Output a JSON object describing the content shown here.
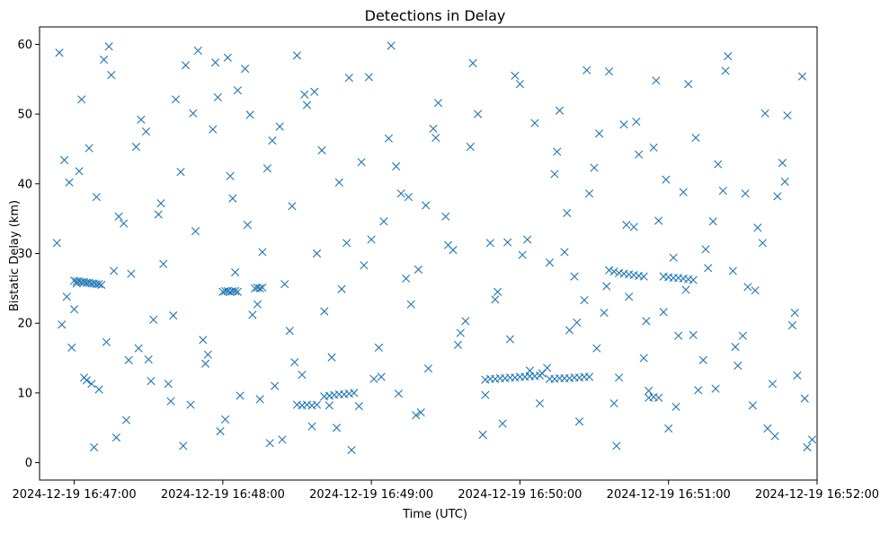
{
  "chart_data": {
    "type": "scatter",
    "title": "Detections in Delay",
    "xlabel": "Time (UTC)",
    "ylabel": "Bistatic Delay (km)",
    "x_axis_type": "datetime",
    "x_tick_labels": [
      "2024-12-19 16:47:00",
      "2024-12-19 16:48:00",
      "2024-12-19 16:49:00",
      "2024-12-19 16:50:00",
      "2024-12-19 16:51:00",
      "2024-12-19 16:52:00"
    ],
    "y_tick_labels": [
      "0",
      "10",
      "20",
      "30",
      "40",
      "50",
      "60"
    ],
    "y_ticks": [
      0,
      10,
      20,
      30,
      40,
      50,
      60
    ],
    "ylim": [
      -2.5,
      62.5
    ],
    "xlim": [
      "2024-12-19 16:46:46",
      "2024-12-19 16:52:00"
    ],
    "grid": false,
    "legend": "none",
    "marker": "x",
    "marker_color": "#1f77b4",
    "series": [
      {
        "x": [
          "2024-12-19 16:46:53",
          "2024-12-19 16:46:55",
          "2024-12-19 16:46:57",
          "2024-12-19 16:46:59",
          "2024-12-19 16:47:00",
          "2024-12-19 16:47:02",
          "2024-12-19 16:47:04",
          "2024-12-19 16:47:06",
          "2024-12-19 16:47:08",
          "2024-12-19 16:47:10",
          "2024-12-19 16:47:13",
          "2024-12-19 16:47:15",
          "2024-12-19 16:47:17",
          "2024-12-19 16:47:20",
          "2024-12-19 16:47:23",
          "2024-12-19 16:47:26",
          "2024-12-19 16:47:29",
          "2024-12-19 16:47:32",
          "2024-12-19 16:47:35",
          "2024-12-19 16:47:38",
          "2024-12-19 16:47:41",
          "2024-12-19 16:47:44",
          "2024-12-19 16:47:47",
          "2024-12-19 16:47:50",
          "2024-12-19 16:47:53",
          "2024-12-19 16:47:56",
          "2024-12-19 16:47:59",
          "2024-12-19 16:48:02",
          "2024-12-19 16:48:04",
          "2024-12-19 16:48:06",
          "2024-12-19 16:48:09",
          "2024-12-19 16:48:12",
          "2024-12-19 16:48:15",
          "2024-12-19 16:48:18",
          "2024-12-19 16:48:21",
          "2024-12-19 16:48:24",
          "2024-12-19 16:48:27",
          "2024-12-19 16:48:30",
          "2024-12-19 16:48:33",
          "2024-12-19 16:48:36",
          "2024-12-19 16:48:40",
          "2024-12-19 16:48:44",
          "2024-12-19 16:48:48",
          "2024-12-19 16:48:52",
          "2024-12-19 16:48:56",
          "2024-12-19 16:49:00",
          "2024-12-19 16:49:04",
          "2024-12-19 16:49:08",
          "2024-12-19 16:49:12",
          "2024-12-19 16:49:16",
          "2024-12-19 16:49:20",
          "2024-12-19 16:49:25",
          "2024-12-19 16:49:30",
          "2024-12-19 16:49:35",
          "2024-12-19 16:49:40",
          "2024-12-19 16:49:45",
          "2024-12-19 16:49:50",
          "2024-12-19 16:49:55",
          "2024-12-19 16:50:00",
          "2024-12-19 16:50:04",
          "2024-12-19 16:50:08",
          "2024-12-19 16:50:12",
          "2024-12-19 16:50:16",
          "2024-12-19 16:50:20",
          "2024-12-19 16:50:24",
          "2024-12-19 16:50:28",
          "2024-12-19 16:50:32",
          "2024-12-19 16:50:36",
          "2024-12-19 16:50:40",
          "2024-12-19 16:50:44",
          "2024-12-19 16:50:48",
          "2024-12-19 16:50:52",
          "2024-12-19 16:50:56",
          "2024-12-19 16:51:00",
          "2024-12-19 16:51:04",
          "2024-12-19 16:51:08",
          "2024-12-19 16:51:12",
          "2024-12-19 16:51:16",
          "2024-12-19 16:51:20",
          "2024-12-19 16:51:24",
          "2024-12-19 16:51:28",
          "2024-12-19 16:51:32",
          "2024-12-19 16:51:36",
          "2024-12-19 16:51:40",
          "2024-12-19 16:51:44",
          "2024-12-19 16:51:48",
          "2024-12-19 16:51:52",
          "2024-12-19 16:51:56",
          "2024-12-19 16:46:54",
          "2024-12-19 16:46:58",
          "2024-12-19 16:47:03",
          "2024-12-19 16:47:07",
          "2024-12-19 16:47:12",
          "2024-12-19 16:47:16",
          "2024-12-19 16:47:21",
          "2024-12-19 16:47:25",
          "2024-12-19 16:47:30",
          "2024-12-19 16:47:34",
          "2024-12-19 16:47:39",
          "2024-12-19 16:47:43",
          "2024-12-19 16:47:48",
          "2024-12-19 16:47:52",
          "2024-12-19 16:47:57",
          "2024-12-19 16:48:01",
          "2024-12-19 16:48:05",
          "2024-12-19 16:48:10",
          "2024-12-19 16:48:14",
          "2024-12-19 16:48:19",
          "2024-12-19 16:48:23",
          "2024-12-19 16:48:28",
          "2024-12-19 16:48:32",
          "2024-12-19 16:48:37",
          "2024-12-19 16:48:41",
          "2024-12-19 16:48:46",
          "2024-12-19 16:48:50",
          "2024-12-19 16:48:55",
          "2024-12-19 16:48:59",
          "2024-12-19 16:49:03",
          "2024-12-19 16:49:07",
          "2024-12-19 16:49:11",
          "2024-12-19 16:49:15",
          "2024-12-19 16:49:19",
          "2024-12-19 16:49:23",
          "2024-12-19 16:49:27",
          "2024-12-19 16:49:31",
          "2024-12-19 16:49:36",
          "2024-12-19 16:49:41",
          "2024-12-19 16:49:46",
          "2024-12-19 16:49:51",
          "2024-12-19 16:49:56",
          "2024-12-19 16:50:01",
          "2024-12-19 16:50:06",
          "2024-12-19 16:50:11",
          "2024-12-19 16:50:15",
          "2024-12-19 16:50:19",
          "2024-12-19 16:50:23",
          "2024-12-19 16:50:27",
          "2024-12-19 16:50:31",
          "2024-12-19 16:50:35",
          "2024-12-19 16:50:39",
          "2024-12-19 16:50:43",
          "2024-12-19 16:50:47",
          "2024-12-19 16:50:51",
          "2024-12-19 16:50:55",
          "2024-12-19 16:50:59",
          "2024-12-19 16:51:03",
          "2024-12-19 16:51:07",
          "2024-12-19 16:51:11",
          "2024-12-19 16:51:15",
          "2024-12-19 16:51:19",
          "2024-12-19 16:51:23",
          "2024-12-19 16:51:27",
          "2024-12-19 16:51:31",
          "2024-12-19 16:51:35",
          "2024-12-19 16:51:39",
          "2024-12-19 16:51:43",
          "2024-12-19 16:51:47",
          "2024-12-19 16:51:51",
          "2024-12-19 16:51:55",
          "2024-12-19 16:46:56",
          "2024-12-19 16:47:01",
          "2024-12-19 16:47:05",
          "2024-12-19 16:47:09",
          "2024-12-19 16:47:14",
          "2024-12-19 16:47:18",
          "2024-12-19 16:47:22",
          "2024-12-19 16:47:27",
          "2024-12-19 16:47:31",
          "2024-12-19 16:47:36",
          "2024-12-19 16:47:40",
          "2024-12-19 16:47:45",
          "2024-12-19 16:47:49",
          "2024-12-19 16:47:54",
          "2024-12-19 16:47:58",
          "2024-12-19 16:48:03",
          "2024-12-19 16:48:07",
          "2024-12-19 16:48:11",
          "2024-12-19 16:48:16",
          "2024-12-19 16:48:20",
          "2024-12-19 16:48:25",
          "2024-12-19 16:48:29",
          "2024-12-19 16:48:34",
          "2024-12-19 16:48:38",
          "2024-12-19 16:48:43",
          "2024-12-19 16:48:47",
          "2024-12-19 16:48:51",
          "2024-12-19 16:48:57",
          "2024-12-19 16:49:01",
          "2024-12-19 16:49:05",
          "2024-12-19 16:49:10",
          "2024-12-19 16:49:14",
          "2024-12-19 16:49:18",
          "2024-12-19 16:49:22",
          "2024-12-19 16:49:26",
          "2024-12-19 16:49:33",
          "2024-12-19 16:49:38",
          "2024-12-19 16:49:43",
          "2024-12-19 16:49:48",
          "2024-12-19 16:49:53",
          "2024-12-19 16:49:58",
          "2024-12-19 16:50:03",
          "2024-12-19 16:50:09",
          "2024-12-19 16:50:14",
          "2024-12-19 16:50:18",
          "2024-12-19 16:50:22",
          "2024-12-19 16:50:26",
          "2024-12-19 16:50:30",
          "2024-12-19 16:50:34",
          "2024-12-19 16:50:38",
          "2024-12-19 16:50:42",
          "2024-12-19 16:50:46",
          "2024-12-19 16:50:50",
          "2024-12-19 16:50:54",
          "2024-12-19 16:50:58",
          "2024-12-19 16:51:02",
          "2024-12-19 16:51:06",
          "2024-12-19 16:51:10",
          "2024-12-19 16:51:14",
          "2024-12-19 16:51:18",
          "2024-12-19 16:51:22",
          "2024-12-19 16:51:26",
          "2024-12-19 16:51:30",
          "2024-12-19 16:51:34",
          "2024-12-19 16:51:38",
          "2024-12-19 16:51:42",
          "2024-12-19 16:51:46",
          "2024-12-19 16:51:50",
          "2024-12-19 16:51:54",
          "2024-12-19 16:51:58",
          "2024-12-19 16:47:00",
          "2024-12-19 16:47:01",
          "2024-12-19 16:47:02",
          "2024-12-19 16:47:03",
          "2024-12-19 16:47:04",
          "2024-12-19 16:47:05",
          "2024-12-19 16:47:06",
          "2024-12-19 16:47:07",
          "2024-12-19 16:47:08",
          "2024-12-19 16:47:09",
          "2024-12-19 16:47:10",
          "2024-12-19 16:47:11",
          "2024-12-19 16:48:00",
          "2024-12-19 16:48:01",
          "2024-12-19 16:48:02",
          "2024-12-19 16:48:03",
          "2024-12-19 16:48:04",
          "2024-12-19 16:48:05",
          "2024-12-19 16:48:06",
          "2024-12-19 16:48:13",
          "2024-12-19 16:48:14",
          "2024-12-19 16:48:15",
          "2024-12-19 16:48:16",
          "2024-12-19 16:48:41",
          "2024-12-19 16:48:43",
          "2024-12-19 16:48:45",
          "2024-12-19 16:48:47",
          "2024-12-19 16:48:49",
          "2024-12-19 16:48:51",
          "2024-12-19 16:48:53",
          "2024-12-19 16:49:46",
          "2024-12-19 16:49:48",
          "2024-12-19 16:49:50",
          "2024-12-19 16:49:52",
          "2024-12-19 16:49:54",
          "2024-12-19 16:49:56",
          "2024-12-19 16:49:58",
          "2024-12-19 16:50:00",
          "2024-12-19 16:50:02",
          "2024-12-19 16:50:04",
          "2024-12-19 16:50:06",
          "2024-12-19 16:50:08",
          "2024-12-19 16:50:12",
          "2024-12-19 16:50:14",
          "2024-12-19 16:50:16",
          "2024-12-19 16:50:18",
          "2024-12-19 16:50:20",
          "2024-12-19 16:50:22",
          "2024-12-19 16:50:24",
          "2024-12-19 16:50:26",
          "2024-12-19 16:50:28",
          "2024-12-19 16:50:36",
          "2024-12-19 16:50:38",
          "2024-12-19 16:50:40",
          "2024-12-19 16:50:42",
          "2024-12-19 16:50:44",
          "2024-12-19 16:50:46",
          "2024-12-19 16:50:48",
          "2024-12-19 16:50:50",
          "2024-12-19 16:50:58",
          "2024-12-19 16:51:00",
          "2024-12-19 16:51:02",
          "2024-12-19 16:51:04",
          "2024-12-19 16:51:06",
          "2024-12-19 16:51:08",
          "2024-12-19 16:51:10",
          "2024-12-19 16:48:30",
          "2024-12-19 16:48:32",
          "2024-12-19 16:48:34",
          "2024-12-19 16:48:36",
          "2024-12-19 16:48:38",
          "2024-12-19 16:50:52",
          "2024-12-19 16:50:54",
          "2024-12-19 16:50:56"
        ],
        "y": [
          31.5,
          19.8,
          23.8,
          16.5,
          22.0,
          41.8,
          12.2,
          45.1,
          2.2,
          10.5,
          17.3,
          55.6,
          3.6,
          34.3,
          27.1,
          16.4,
          47.5,
          20.5,
          37.2,
          11.3,
          52.1,
          2.4,
          8.3,
          59.1,
          14.2,
          47.8,
          4.5,
          58.1,
          37.9,
          53.4,
          56.5,
          21.2,
          9.1,
          42.2,
          11.0,
          3.3,
          18.9,
          58.4,
          52.8,
          5.2,
          44.8,
          15.1,
          24.9,
          1.8,
          43.1,
          32.0,
          12.3,
          59.8,
          38.6,
          22.7,
          7.2,
          47.9,
          35.3,
          16.9,
          45.3,
          4.0,
          23.4,
          31.6,
          54.3,
          13.2,
          8.5,
          28.7,
          50.5,
          19.0,
          5.9,
          38.6,
          47.2,
          56.1,
          12.2,
          23.8,
          44.2,
          10.3,
          34.7,
          4.9,
          18.2,
          54.3,
          10.4,
          27.9,
          42.8,
          58.3,
          13.9,
          25.2,
          33.7,
          4.9,
          38.2,
          49.8,
          12.5,
          2.2,
          58.8,
          40.2,
          52.1,
          11.3,
          57.8,
          27.5,
          6.1,
          45.3,
          14.8,
          35.6,
          8.8,
          41.7,
          50.1,
          17.6,
          57.4,
          6.2,
          27.3,
          34.1,
          22.7,
          2.8,
          48.2,
          36.8,
          12.6,
          53.2,
          21.7,
          5.0,
          31.5,
          8.1,
          55.3,
          16.5,
          46.5,
          9.9,
          38.1,
          27.7,
          13.5,
          51.6,
          31.2,
          18.6,
          57.3,
          9.7,
          24.5,
          17.7,
          29.8,
          48.7,
          13.6,
          44.6,
          35.8,
          20.1,
          56.3,
          16.4,
          25.3,
          2.4,
          34.1,
          48.9,
          20.3,
          54.8,
          40.6,
          8.0,
          24.8,
          46.6,
          30.6,
          10.6,
          56.2,
          16.6,
          38.6,
          24.7,
          50.1,
          3.8,
          40.3,
          21.5,
          9.2,
          43.4,
          25.7,
          11.8,
          38.1,
          59.7,
          35.3,
          14.7,
          49.2,
          11.7,
          28.5,
          21.1,
          57.0,
          33.2,
          15.5,
          52.4,
          41.1,
          9.6,
          49.9,
          30.2,
          46.2,
          25.6,
          14.4,
          51.3,
          30.0,
          8.2,
          40.2,
          55.2,
          28.3,
          12.0,
          34.6,
          42.5,
          26.4,
          6.8,
          36.9,
          46.6,
          30.5,
          20.3,
          50.0,
          31.5,
          5.6,
          55.5,
          32.0,
          12.8,
          41.4,
          30.2,
          26.7,
          23.3,
          42.3,
          21.5,
          8.5,
          48.5,
          33.8,
          15.0,
          45.2,
          21.6,
          29.4,
          38.8,
          18.3,
          14.7,
          34.6,
          39.0,
          27.5,
          18.2,
          8.2,
          31.5,
          11.3,
          43.0,
          19.7,
          55.4,
          3.3,
          26.1,
          26.0,
          26.0,
          25.9,
          25.9,
          25.8,
          25.8,
          25.7,
          25.7,
          25.6,
          25.6,
          25.5,
          24.5,
          24.6,
          24.6,
          24.5,
          24.6,
          24.6,
          24.5,
          25.0,
          25.1,
          25.0,
          25.1,
          9.5,
          9.6,
          9.7,
          9.8,
          9.8,
          9.9,
          10.0,
          11.9,
          12.0,
          12.0,
          12.1,
          12.1,
          12.2,
          12.2,
          12.3,
          12.3,
          12.4,
          12.4,
          12.5,
          12.0,
          12.0,
          12.1,
          12.1,
          12.1,
          12.2,
          12.2,
          12.3,
          12.3,
          27.6,
          27.4,
          27.2,
          27.1,
          27.0,
          26.9,
          26.8,
          26.7,
          26.7,
          26.6,
          26.5,
          26.5,
          26.4,
          26.3,
          26.2,
          8.3,
          8.2,
          8.3,
          8.2,
          8.3,
          9.3,
          9.4,
          9.3
        ]
      }
    ]
  }
}
